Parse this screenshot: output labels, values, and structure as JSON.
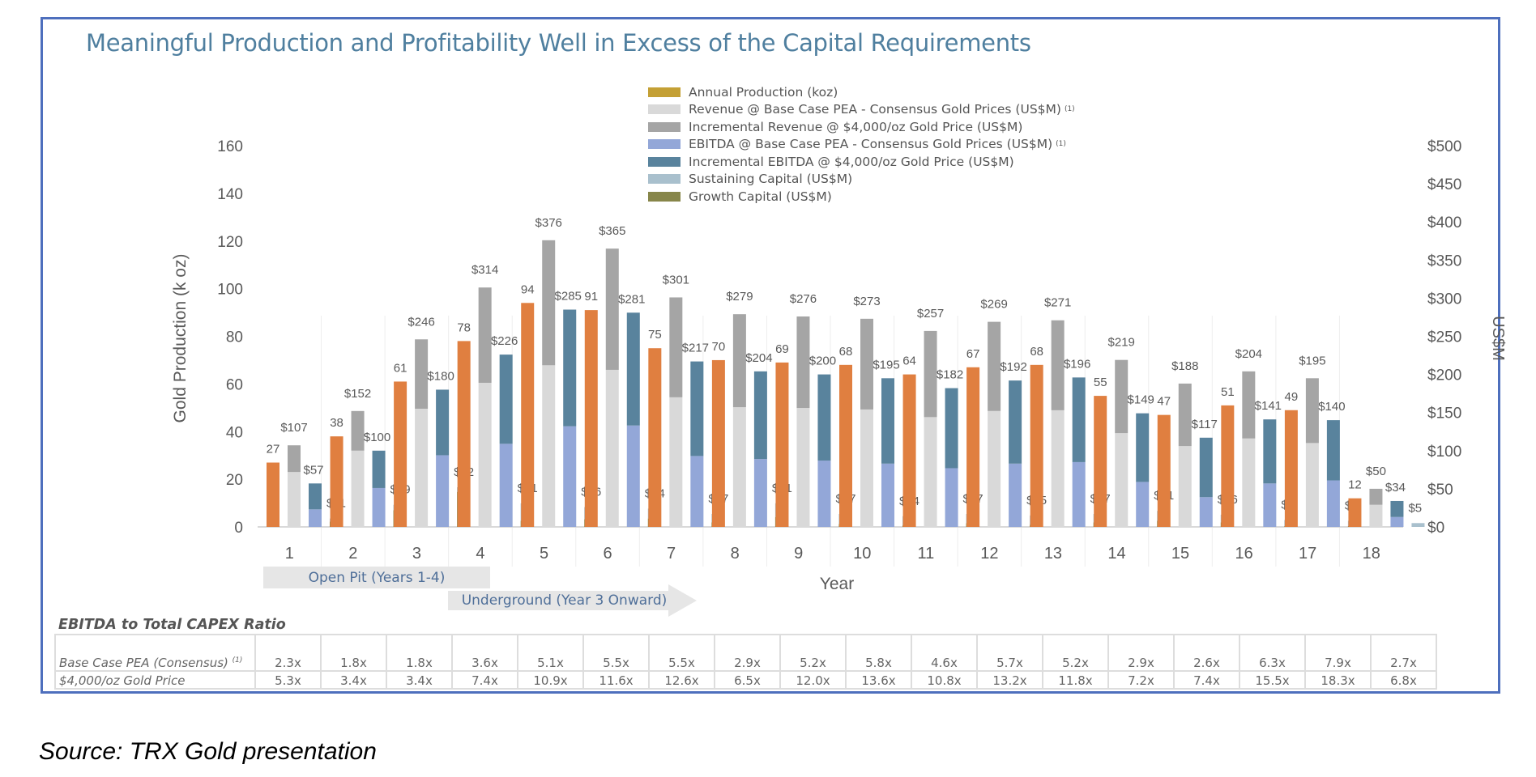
{
  "title": "Meaningful Production and Profitability Well in Excess of the Capital Requirements",
  "source": "Source: TRX Gold presentation",
  "colors": {
    "frame": "#4e6fbd",
    "title": "#4f7f9f",
    "production": "#e07f40",
    "production_legend": "#c4a035",
    "revenue_base": "#d9d9d9",
    "revenue_incremental": "#a5a5a5",
    "ebitda_base": "#93a7d8",
    "ebitda_incremental": "#59839d",
    "sustaining_capital": "#a9c0cd",
    "growth_capital": "#87864a"
  },
  "legend": [
    {
      "label": "Annual Production (koz)",
      "sup": "",
      "color_key": "production_legend"
    },
    {
      "label": "Revenue @ Base Case PEA - Consensus Gold Prices (US$M)",
      "sup": "(1)",
      "color_key": "revenue_base"
    },
    {
      "label": "Incremental Revenue @ $4,000/oz Gold Price (US$M)",
      "sup": "",
      "color_key": "revenue_incremental"
    },
    {
      "label": "EBITDA @ Base Case PEA - Consensus Gold Prices (US$M)",
      "sup": "(1)",
      "color_key": "ebitda_base"
    },
    {
      "label": "Incremental EBITDA @ $4,000/oz Gold Price (US$M)",
      "sup": "",
      "color_key": "ebitda_incremental"
    },
    {
      "label": "Sustaining Capital (US$M)",
      "sup": "",
      "color_key": "sustaining_capital"
    },
    {
      "label": "Growth Capital (US$M)",
      "sup": "",
      "color_key": "growth_capital"
    }
  ],
  "phases": {
    "open_pit": "Open Pit (Years 1-4)",
    "underground": "Underground (Year 3 Onward)"
  },
  "chart_data": {
    "type": "bar",
    "title": "Meaningful Production and Profitability Well in Excess of the Capital Requirements",
    "xlabel": "Year",
    "ylabel": "Gold Production (k oz)",
    "y2label": "US$M",
    "ylim": [
      0,
      160
    ],
    "y2lim": [
      0,
      500
    ],
    "yticks": [
      0,
      20,
      40,
      60,
      80,
      100,
      120,
      140,
      160
    ],
    "y2ticks": [
      "$0",
      "$50",
      "$100",
      "$150",
      "$200",
      "$250",
      "$300",
      "$350",
      "$400",
      "$450",
      "$500"
    ],
    "grid": "vertical category separators",
    "legend_position": "top-center",
    "categories": [
      "1",
      "2",
      "3",
      "4",
      "5",
      "6",
      "7",
      "8",
      "9",
      "10",
      "11",
      "12",
      "13",
      "14",
      "15",
      "16",
      "17",
      "18"
    ],
    "series": [
      {
        "name": "Annual Production (koz)",
        "axis": "left",
        "values": [
          27,
          38,
          61,
          78,
          94,
          91,
          75,
          70,
          69,
          68,
          64,
          67,
          68,
          55,
          47,
          51,
          49,
          12
        ]
      },
      {
        "name": "Revenue @ Base Case PEA - Consensus Gold Prices (US$M)",
        "axis": "right",
        "stack": "revenue",
        "values": [
          72,
          100,
          155,
          189,
          212,
          206,
          170,
          157,
          156,
          154,
          144,
          152,
          153,
          123,
          106,
          116,
          110,
          29
        ]
      },
      {
        "name": "Incremental Revenue @ $4,000/oz Gold Price (US$M)",
        "axis": "right",
        "stack": "revenue",
        "values": [
          35,
          52,
          91,
          125,
          164,
          159,
          131,
          122,
          120,
          119,
          113,
          117,
          118,
          96,
          82,
          88,
          85,
          21
        ]
      },
      {
        "name": "EBITDA @ Base Case PEA - Consensus Gold Prices (US$M)",
        "axis": "right",
        "stack": "ebitda",
        "values": [
          23,
          51,
          94,
          109,
          132,
          133,
          93,
          89,
          87,
          83,
          77,
          83,
          85,
          59,
          39,
          57,
          61,
          13
        ]
      },
      {
        "name": "Incremental EBITDA @ $4,000/oz Gold Price (US$M)",
        "axis": "right",
        "stack": "ebitda",
        "values": [
          34,
          49,
          86,
          117,
          153,
          148,
          124,
          115,
          113,
          112,
          105,
          109,
          111,
          90,
          78,
          84,
          79,
          21
        ]
      },
      {
        "name": "Sustaining Capital (US$M)",
        "axis": "right",
        "stack": "capital",
        "values": [
          4,
          7,
          6,
          23,
          16,
          13,
          11,
          18,
          13,
          12,
          12,
          12,
          11,
          13,
          10,
          8,
          7,
          5
        ]
      },
      {
        "name": "Growth Capital (US$M)",
        "axis": "right",
        "stack": "capital",
        "values": [
          7,
          22,
          46,
          8,
          10,
          11,
          6,
          13,
          4,
          2,
          5,
          3,
          6,
          8,
          6,
          1,
          1,
          0
        ]
      }
    ],
    "data_labels": {
      "production": [
        "27",
        "38",
        "61",
        "78",
        "94",
        "91",
        "75",
        "70",
        "69",
        "68",
        "64",
        "67",
        "68",
        "55",
        "47",
        "51",
        "49",
        "12"
      ],
      "revenue_total": [
        "$107",
        "$152",
        "$246",
        "$314",
        "$376",
        "$365",
        "$301",
        "$279",
        "$276",
        "$273",
        "$257",
        "$269",
        "$271",
        "$219",
        "$188",
        "$204",
        "$195",
        "$50"
      ],
      "ebitda_total": [
        "$57",
        "$100",
        "$180",
        "$226",
        "$285",
        "$281",
        "$217",
        "$204",
        "$200",
        "$195",
        "$182",
        "$192",
        "$196",
        "$149",
        "$117",
        "$141",
        "$140",
        "$34"
      ],
      "capital_total": [
        "$11",
        "$29",
        "$52",
        "$31",
        "$26",
        "$24",
        "$17",
        "$31",
        "$17",
        "$14",
        "$17",
        "$15",
        "$17",
        "$21",
        "$16",
        "$9",
        "$8",
        "$5"
      ]
    }
  },
  "ratio_table": {
    "title": "EBITDA to Total CAPEX Ratio",
    "rows": [
      {
        "label": "Base Case PEA (Consensus)",
        "sup": "(1)",
        "values": [
          "2.3x",
          "1.8x",
          "1.8x",
          "3.6x",
          "5.1x",
          "5.5x",
          "5.5x",
          "2.9x",
          "5.2x",
          "5.8x",
          "4.6x",
          "5.7x",
          "5.2x",
          "2.9x",
          "2.6x",
          "6.3x",
          "7.9x",
          "2.7x"
        ]
      },
      {
        "label": "$4,000/oz Gold Price",
        "sup": "",
        "values": [
          "5.3x",
          "3.4x",
          "3.4x",
          "7.4x",
          "10.9x",
          "11.6x",
          "12.6x",
          "6.5x",
          "12.0x",
          "13.6x",
          "10.8x",
          "13.2x",
          "11.8x",
          "7.2x",
          "7.4x",
          "15.5x",
          "18.3x",
          "6.8x"
        ]
      }
    ]
  }
}
